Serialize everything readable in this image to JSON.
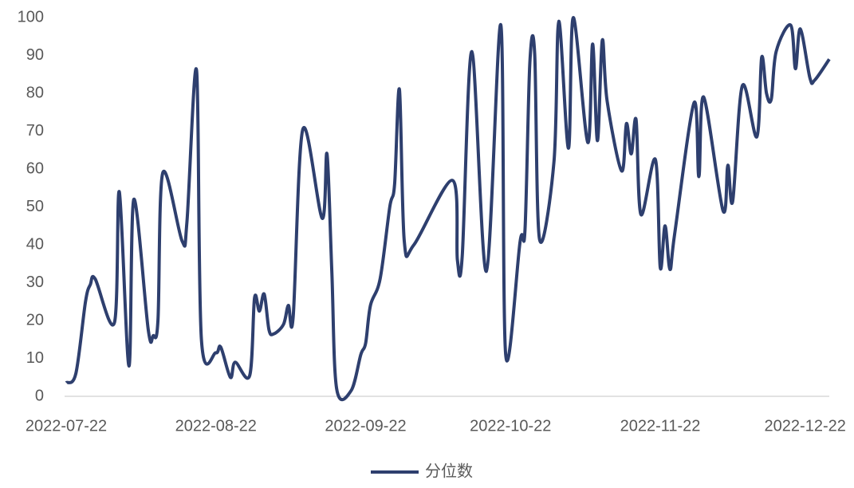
{
  "chart_data": {
    "type": "line",
    "x": [
      "2022-07-22",
      "2022-07-24",
      "2022-07-26",
      "2022-07-27",
      "2022-07-28",
      "2022-08-01",
      "2022-08-02",
      "2022-08-04",
      "2022-08-05",
      "2022-08-08",
      "2022-08-09",
      "2022-08-10",
      "2022-08-11",
      "2022-08-15",
      "2022-08-16",
      "2022-08-18",
      "2022-08-19",
      "2022-08-22",
      "2022-08-23",
      "2022-08-25",
      "2022-08-26",
      "2022-08-29",
      "2022-08-30",
      "2022-08-31",
      "2022-09-01",
      "2022-09-02",
      "2022-09-03",
      "2022-09-05",
      "2022-09-06",
      "2022-09-07",
      "2022-09-09",
      "2022-09-13",
      "2022-09-14",
      "2022-09-15",
      "2022-09-16",
      "2022-09-19",
      "2022-09-21",
      "2022-09-22",
      "2022-09-23",
      "2022-09-25",
      "2022-09-27",
      "2022-09-28",
      "2022-09-29",
      "2022-09-30",
      "2022-10-02",
      "2022-10-10",
      "2022-10-11",
      "2022-10-12",
      "2022-10-14",
      "2022-10-17",
      "2022-10-20",
      "2022-10-21",
      "2022-10-24",
      "2022-10-25",
      "2022-10-26",
      "2022-10-27",
      "2022-10-28",
      "2022-10-31",
      "2022-11-01",
      "2022-11-03",
      "2022-11-04",
      "2022-11-07",
      "2022-11-08",
      "2022-11-09",
      "2022-11-10",
      "2022-11-11",
      "2022-11-14",
      "2022-11-15",
      "2022-11-16",
      "2022-11-17",
      "2022-11-18",
      "2022-11-21",
      "2022-11-22",
      "2022-11-23",
      "2022-11-24",
      "2022-11-25",
      "2022-11-29",
      "2022-11-30",
      "2022-12-01",
      "2022-12-05",
      "2022-12-06",
      "2022-12-07",
      "2022-12-09",
      "2022-12-12",
      "2022-12-13",
      "2022-12-14",
      "2022-12-15",
      "2022-12-16",
      "2022-12-19",
      "2022-12-20",
      "2022-12-21",
      "2022-12-23",
      "2022-12-24",
      "2022-12-27"
    ],
    "series": [
      {
        "name": "分位数",
        "color": "#2e3f6e",
        "values": [
          3.6,
          6,
          25,
          29.5,
          31,
          19.5,
          54,
          8,
          52,
          17.5,
          16,
          20,
          59,
          41,
          46,
          86,
          15,
          11.5,
          13,
          5,
          9,
          5.5,
          26,
          22.5,
          27,
          17.5,
          16.5,
          19,
          24,
          21,
          70.5,
          47,
          64,
          33,
          2,
          1.5,
          11,
          14,
          24,
          31,
          50,
          56,
          81,
          41,
          40,
          57,
          36,
          37,
          91,
          33,
          98,
          11,
          41,
          44,
          88,
          90.5,
          41.5,
          62,
          99,
          65.5,
          100,
          67,
          93,
          67.5,
          94,
          78,
          59.5,
          72,
          64,
          73,
          48,
          62.5,
          34,
          45,
          33.5,
          43,
          77.5,
          58,
          79,
          49,
          61,
          51.5,
          82,
          68.5,
          89.5,
          80,
          78.5,
          91,
          98,
          86.5,
          97,
          84,
          83.5,
          89
        ]
      }
    ],
    "xlim": [
      "2022-07-22",
      "2022-12-27"
    ],
    "xticks": [
      "2022-07-22",
      "2022-08-22",
      "2022-09-22",
      "2022-10-22",
      "2022-11-22",
      "2022-12-22"
    ],
    "ylim": [
      0,
      100
    ],
    "yticks": [
      0,
      10,
      20,
      30,
      40,
      50,
      60,
      70,
      80,
      90,
      100
    ],
    "legend": "bottom"
  }
}
